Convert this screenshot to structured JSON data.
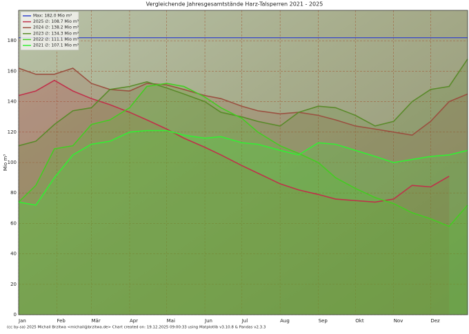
{
  "chart_data": {
    "type": "line",
    "title": "Vergleichende Jahresgesamtstände Harz-Talsperren 2021 - 2025",
    "y_label": "Mio m³",
    "footer": "(cc by-sa) 2025 Michail Brzitwa <michail@brzitwa.de>   Chart created on: 19.12.2025 09:00:33 using Matplotlib v3.10.8 & Pandas v2.3.3",
    "x": [
      1,
      15,
      30,
      45,
      60,
      75,
      91,
      105,
      121,
      135,
      152,
      165,
      182,
      195,
      213,
      228,
      244,
      258,
      274,
      290,
      305,
      320,
      335,
      350,
      365
    ],
    "xlim": [
      1,
      365
    ],
    "xticks": [
      {
        "value": 1,
        "label": "Jan"
      },
      {
        "value": 32,
        "label": "Feb"
      },
      {
        "value": 60,
        "label": "Mär"
      },
      {
        "value": 91,
        "label": "Apr"
      },
      {
        "value": 121,
        "label": "Mai"
      },
      {
        "value": 152,
        "label": "Jun"
      },
      {
        "value": 182,
        "label": "Jul"
      },
      {
        "value": 213,
        "label": "Aug"
      },
      {
        "value": 244,
        "label": "Sep"
      },
      {
        "value": 274,
        "label": "Okt"
      },
      {
        "value": 305,
        "label": "Nov"
      },
      {
        "value": 335,
        "label": "Dez"
      }
    ],
    "ylim": [
      0,
      200
    ],
    "yticks": [
      0,
      20,
      40,
      60,
      80,
      100,
      120,
      140,
      160,
      180
    ],
    "grid": true,
    "legend_position": "upper-left",
    "max_line": {
      "name": "Max: 182.0 Mio m³",
      "value": 182,
      "color": "#3344cc"
    },
    "series": [
      {
        "name": "2025 ∅: 108.7 Mio m³",
        "color": "#c0304a",
        "values": [
          144,
          147,
          154,
          147,
          142,
          138,
          133,
          128,
          122,
          116,
          110,
          105,
          98,
          93,
          86,
          82,
          79,
          76,
          75,
          74,
          76,
          85,
          84,
          91,
          null
        ]
      },
      {
        "name": "2024 ∅: 138.2 Mio m³",
        "color": "#9a5040",
        "values": [
          162,
          158,
          158,
          162,
          152,
          148,
          147,
          152,
          151,
          148,
          144,
          142,
          137,
          134,
          132,
          133,
          131,
          128,
          124,
          122,
          120,
          118,
          127,
          140,
          145
        ]
      },
      {
        "name": "2023 ∅: 134.3 Mio m³",
        "color": "#5a8a2a",
        "values": [
          111,
          114,
          125,
          134,
          136,
          148,
          150,
          153,
          149,
          145,
          140,
          133,
          130,
          127,
          124,
          133,
          137,
          136,
          131,
          124,
          127,
          140,
          148,
          150,
          168
        ]
      },
      {
        "name": "2022 ∅: 111.1 Mio m³",
        "color": "#44cc22",
        "values": [
          74,
          85,
          109,
          111,
          125,
          128,
          136,
          150,
          152,
          150,
          143,
          136,
          129,
          120,
          111,
          106,
          100,
          90,
          83,
          77,
          73,
          67,
          63,
          58,
          72
        ]
      },
      {
        "name": "2021 ∅: 107.1 Mio m³",
        "color": "#33ee33",
        "values": [
          74,
          72,
          90,
          105,
          112,
          114,
          120,
          121,
          121,
          118,
          116,
          117,
          113,
          112,
          108,
          105,
          113,
          112,
          108,
          104,
          100,
          102,
          104,
          105,
          108
        ]
      }
    ]
  }
}
